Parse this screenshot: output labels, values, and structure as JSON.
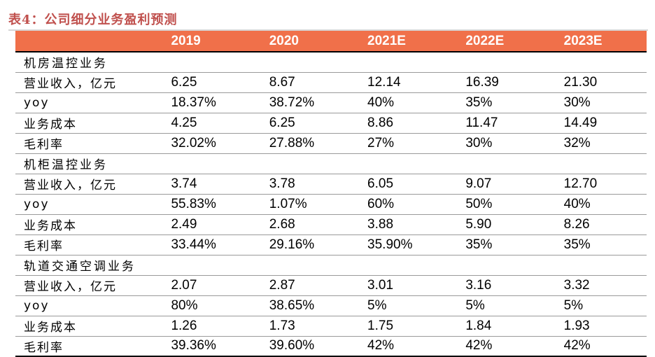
{
  "title": "表4：公司细分业务盈利预测",
  "columns": [
    "2019",
    "2020",
    "2021E",
    "2022E",
    "2023E"
  ],
  "sections": [
    {
      "name": "机房温控业务",
      "rows": [
        {
          "label": "营业收入，亿元",
          "values": [
            "6.25",
            "8.67",
            "12.14",
            "16.39",
            "21.30"
          ]
        },
        {
          "label": "yoy",
          "values": [
            "18.37%",
            "38.72%",
            "40%",
            "35%",
            "30%"
          ]
        },
        {
          "label": "业务成本",
          "values": [
            "4.25",
            "6.25",
            "8.86",
            "11.47",
            "14.49"
          ]
        },
        {
          "label": "毛利率",
          "values": [
            "32.02%",
            "27.88%",
            "27%",
            "30%",
            "32%"
          ]
        }
      ]
    },
    {
      "name": "机柜温控业务",
      "rows": [
        {
          "label": "营业收入，亿元",
          "values": [
            "3.74",
            "3.78",
            "6.05",
            "9.07",
            "12.70"
          ]
        },
        {
          "label": "yoy",
          "values": [
            "55.83%",
            "1.07%",
            "60%",
            "50%",
            "40%"
          ]
        },
        {
          "label": "业务成本",
          "values": [
            "2.49",
            "2.68",
            "3.88",
            "5.90",
            "8.26"
          ]
        },
        {
          "label": "毛利率",
          "values": [
            "33.44%",
            "29.16%",
            "35.90%",
            "35%",
            "35%"
          ]
        }
      ]
    },
    {
      "name": "轨道交通空调业务",
      "rows": [
        {
          "label": "营业收入，亿元",
          "values": [
            "2.07",
            "2.87",
            "3.01",
            "3.16",
            "3.32"
          ]
        },
        {
          "label": "yoy",
          "values": [
            "80%",
            "38.65%",
            "5%",
            "5%",
            "5%"
          ]
        },
        {
          "label": "业务成本",
          "values": [
            "1.26",
            "1.73",
            "1.75",
            "1.84",
            "1.93"
          ]
        },
        {
          "label": "毛利率",
          "values": [
            "39.36%",
            "39.60%",
            "42%",
            "42%",
            "42%"
          ]
        }
      ]
    }
  ]
}
